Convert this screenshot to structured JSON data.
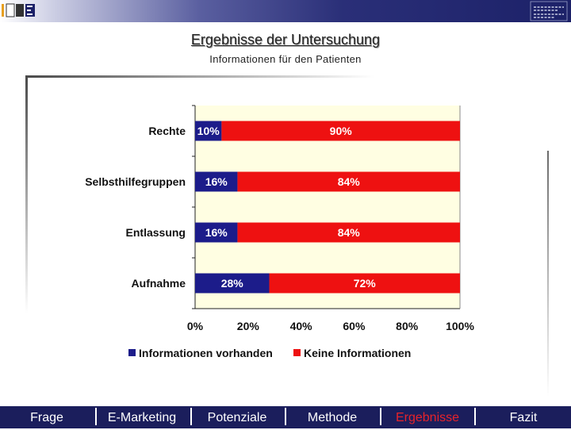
{
  "header": {
    "title": "Ergebnisse der Untersuchung",
    "subtitle": "Informationen für den Patienten"
  },
  "colors": {
    "series_1": "#1c1c8a",
    "series_2": "#ee1111",
    "nav_bg": "#1b1e5c",
    "active": "#e8232a"
  },
  "chart_data": {
    "type": "bar",
    "orientation": "horizontal",
    "stacked": true,
    "percent_stacked": true,
    "categories": [
      "Rechte",
      "Selbsthilfegruppen",
      "Entlassung",
      "Aufnahme"
    ],
    "series": [
      {
        "name": "Informationen vorhanden",
        "values": [
          10,
          16,
          16,
          28
        ],
        "labels": [
          "10%",
          "16%",
          "16%",
          "28%"
        ],
        "color": "#1c1c8a"
      },
      {
        "name": "Keine Informationen",
        "values": [
          90,
          84,
          84,
          72
        ],
        "labels": [
          "90%",
          "84%",
          "84%",
          "72%"
        ],
        "color": "#ee1111"
      }
    ],
    "xlim": [
      0,
      100
    ],
    "xticks": [
      "0%",
      "20%",
      "40%",
      "60%",
      "80%",
      "100%"
    ],
    "legend": "bottom",
    "grid": false
  },
  "nav": {
    "items": [
      {
        "label": "Frage"
      },
      {
        "label": "E-Marketing"
      },
      {
        "label": "Potenziale"
      },
      {
        "label": "Methode"
      },
      {
        "label": "Ergebnisse",
        "active": true
      },
      {
        "label": "Fazit"
      }
    ]
  }
}
